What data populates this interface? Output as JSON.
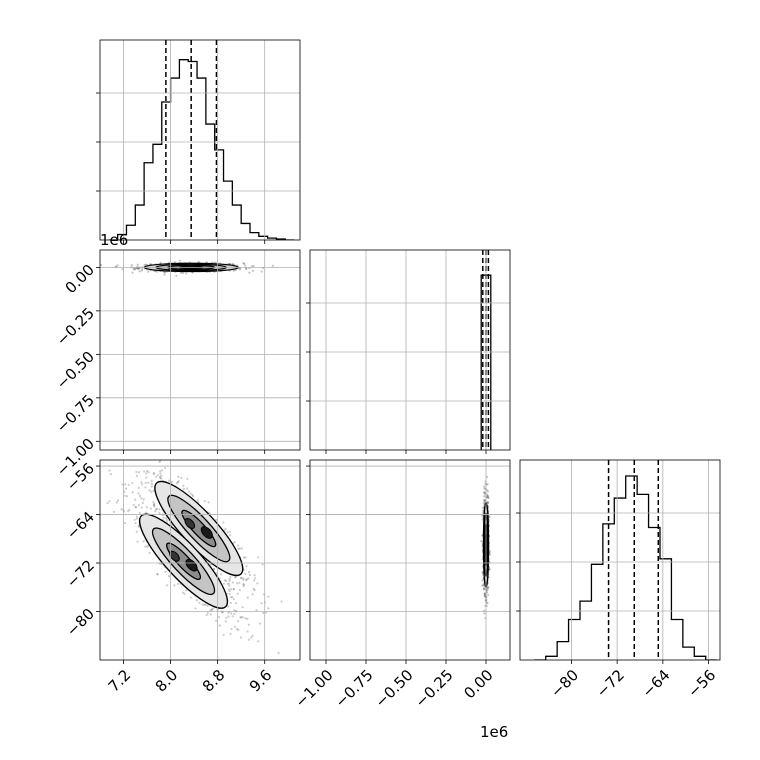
{
  "chart_data": {
    "type": "corner",
    "grid": true,
    "panels": {
      "p00": {
        "kind": "histogram",
        "xlim": [
          6.8,
          10.2
        ],
        "ylim": [
          0,
          1.0
        ],
        "bin_edges": [
          6.95,
          7.1,
          7.25,
          7.4,
          7.55,
          7.7,
          7.85,
          8.0,
          8.15,
          8.3,
          8.45,
          8.6,
          8.75,
          8.9,
          9.05,
          9.2,
          9.35,
          9.5,
          9.65,
          9.8,
          9.95,
          10.1
        ],
        "counts": [
          0.0,
          0.03,
          0.08,
          0.19,
          0.42,
          0.52,
          0.75,
          0.88,
          0.98,
          0.97,
          0.88,
          0.63,
          0.49,
          0.32,
          0.19,
          0.09,
          0.04,
          0.02,
          0.01,
          0.005,
          0.0
        ],
        "quantiles": [
          7.92,
          8.35,
          8.78
        ]
      },
      "p10": {
        "kind": "scatter_contour",
        "xlim": [
          6.8,
          10.2
        ],
        "ylim": [
          -1.05,
          0.1
        ],
        "center": [
          8.35,
          0.0
        ],
        "x_sigma": 0.4,
        "y_sigma": 0.012,
        "n_points": 700,
        "contour_scale": [
          0.5,
          1.0,
          1.5,
          2.0
        ]
      },
      "p11": {
        "kind": "histogram",
        "xlim": [
          -1.1,
          0.15
        ],
        "ylim": [
          0,
          1.0
        ],
        "bin_edges": [
          -0.03,
          0.03
        ],
        "counts": [
          0.95
        ],
        "quantiles": [
          -0.02,
          0.0,
          0.015
        ]
      },
      "p20": {
        "kind": "scatter_contour",
        "xlim": [
          6.8,
          10.2
        ],
        "ylim": [
          -88,
          -55
        ],
        "center": [
          8.35,
          -69
        ],
        "mode_offset": [
          -0.2,
          0.2
        ],
        "direction": [
          1.0,
          -11.0
        ],
        "n_points": 1400,
        "contour_scale": [
          0.4,
          0.8,
          1.2
        ]
      },
      "p21": {
        "kind": "scatter_contour",
        "xlim": [
          -1.1,
          0.15
        ],
        "ylim": [
          -88,
          -55
        ],
        "center": [
          0.0,
          -69
        ],
        "x_sigma": 0.008,
        "y_sigma": 3.5,
        "n_points": 900,
        "contour_scale": [
          0.5,
          1.0,
          1.5,
          2.0
        ]
      },
      "p22": {
        "kind": "histogram",
        "xlim": [
          -89,
          -54
        ],
        "ylim": [
          0,
          1.0
        ],
        "bin_edges": [
          -86.5,
          -84.5,
          -82.5,
          -80.5,
          -78.5,
          -76.5,
          -74.5,
          -72.5,
          -70.5,
          -68.5,
          -66.5,
          -64.5,
          -62.5,
          -60.5,
          -58.5,
          -56.5,
          -54.5
        ],
        "counts": [
          0.0,
          0.02,
          0.1,
          0.22,
          0.32,
          0.52,
          0.74,
          0.88,
          1.0,
          0.9,
          0.72,
          0.55,
          0.22,
          0.07,
          0.02,
          0.0
        ],
        "quantiles": [
          -73.5,
          -69.0,
          -64.8
        ]
      }
    },
    "axes": {
      "x_bottom_left": {
        "ticks": [
          7.2,
          8.0,
          8.8,
          9.6
        ],
        "labels": [
          "7.2",
          "8.0",
          "8.8",
          "9.6"
        ]
      },
      "x_bottom_middle": {
        "ticks": [
          -1.0,
          -0.75,
          -0.5,
          -0.25,
          0.0
        ],
        "labels": [
          "−1.00",
          "−0.75",
          "−0.50",
          "−0.25",
          "0.00"
        ],
        "offset": "1e6"
      },
      "x_bottom_right": {
        "ticks": [
          -80,
          -72,
          -64,
          -56
        ],
        "labels": [
          "−80",
          "−72",
          "−64",
          "−56"
        ]
      },
      "y_row1": {
        "ticks": [
          0.0,
          -0.25,
          -0.5,
          -0.75,
          -1.0
        ],
        "labels": [
          "0.00",
          "−0.25",
          "−0.50",
          "−0.75",
          "−1.00"
        ],
        "offset": "1e6"
      },
      "y_row2": {
        "ticks": [
          -56,
          -64,
          -72,
          -80
        ],
        "labels": [
          "−56",
          "−64",
          "−72",
          "−80"
        ]
      }
    }
  }
}
